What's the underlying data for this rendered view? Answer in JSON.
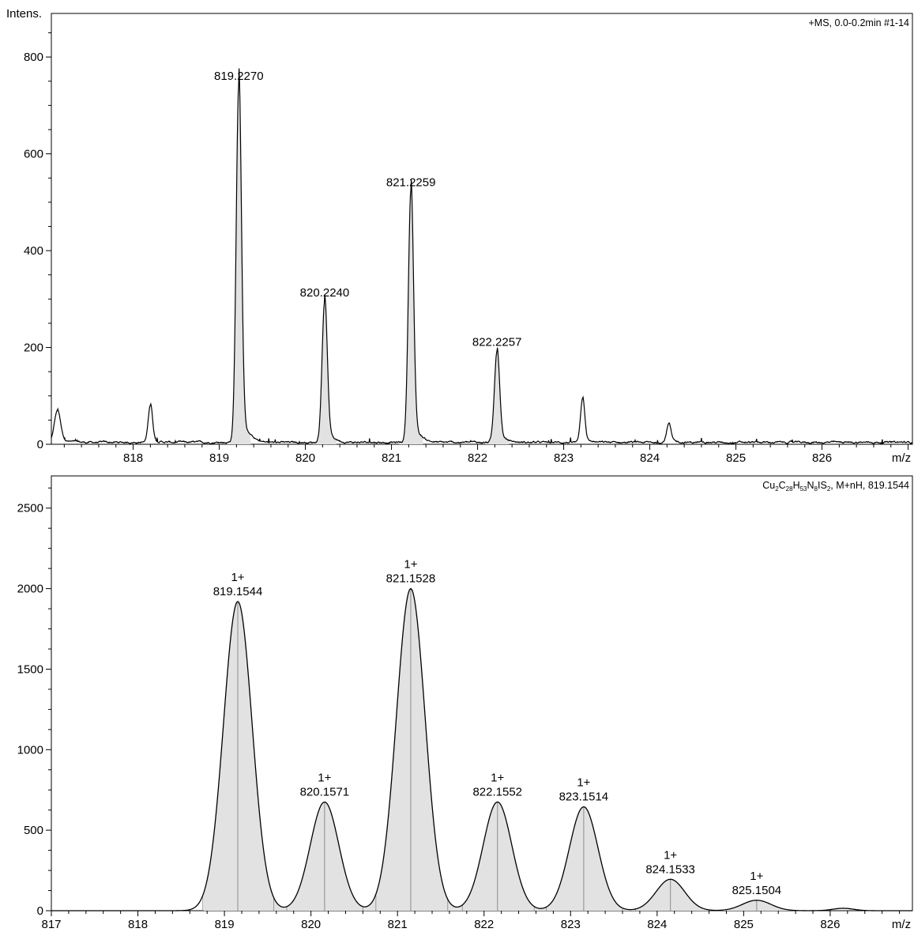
{
  "chart_data": [
    {
      "type": "line",
      "ylabel": "Intens.",
      "xlabel": "m/z",
      "annotation": "+MS, 0.0-0.2min #1-14",
      "xlim": [
        817.05,
        827.05
      ],
      "ylim": [
        0,
        890
      ],
      "x_ticks": [
        818,
        819,
        820,
        821,
        822,
        823,
        824,
        825,
        826
      ],
      "y_ticks": [
        0,
        200,
        400,
        600,
        800
      ],
      "fill_color": "#e2e2e2",
      "line_color": "#000000",
      "noise_level": 4,
      "peaks": [
        {
          "mz": 817.12,
          "intensity": 65,
          "width": 0.035
        },
        {
          "mz": 818.2,
          "intensity": 78,
          "width": 0.025
        },
        {
          "mz": 819.227,
          "intensity": 740,
          "width": 0.03,
          "label": "819.2270"
        },
        {
          "mz": 820.224,
          "intensity": 292,
          "width": 0.03,
          "label": "820.2240"
        },
        {
          "mz": 821.2259,
          "intensity": 520,
          "width": 0.03,
          "label": "821.2259"
        },
        {
          "mz": 822.2257,
          "intensity": 190,
          "width": 0.03,
          "label": "822.2257"
        },
        {
          "mz": 823.22,
          "intensity": 92,
          "width": 0.025
        },
        {
          "mz": 824.22,
          "intensity": 38,
          "width": 0.025
        }
      ]
    },
    {
      "type": "area",
      "xlabel": "m/z",
      "annotation_html": "Cu<tspan font-size='8px' dy='3'>2</tspan><tspan dy='-3'>C</tspan><tspan font-size='8px' dy='3'>28</tspan><tspan dy='-3'>H</tspan><tspan font-size='8px' dy='3'>53</tspan><tspan dy='-3'>N</tspan><tspan font-size='8px' dy='3'>8</tspan><tspan dy='-3'>IS</tspan><tspan font-size='8px' dy='3'>2</tspan><tspan dy='-3'>, M+nH, 819.1544</tspan>",
      "annotation": "Cu2C28H53N8IS2, M+nH, 819.1544",
      "xlim": [
        817.0,
        826.95
      ],
      "ylim": [
        0,
        2700
      ],
      "x_ticks": [
        817,
        818,
        819,
        820,
        821,
        822,
        823,
        824,
        825,
        826
      ],
      "y_ticks": [
        0,
        500,
        1000,
        1500,
        2000,
        2500
      ],
      "fill_color": "#e2e2e2",
      "line_color": "#000000",
      "peak_line_color": "#9a9a9a",
      "sigma": 0.165,
      "peaks": [
        {
          "mz": 819.1544,
          "intensity": 1920,
          "charge": "1+",
          "label": "819.1544"
        },
        {
          "mz": 820.1571,
          "intensity": 675,
          "charge": "1+",
          "label": "820.1571"
        },
        {
          "mz": 821.1528,
          "intensity": 2000,
          "charge": "1+",
          "label": "821.1528"
        },
        {
          "mz": 822.1552,
          "intensity": 675,
          "charge": "1+",
          "label": "822.1552"
        },
        {
          "mz": 823.1514,
          "intensity": 645,
          "charge": "1+",
          "label": "823.1514"
        },
        {
          "mz": 824.1533,
          "intensity": 195,
          "charge": "1+",
          "label": "824.1533"
        },
        {
          "mz": 825.1504,
          "intensity": 65,
          "charge": "1+",
          "label": "825.1504"
        },
        {
          "mz": 826.15,
          "intensity": 15
        }
      ]
    }
  ]
}
